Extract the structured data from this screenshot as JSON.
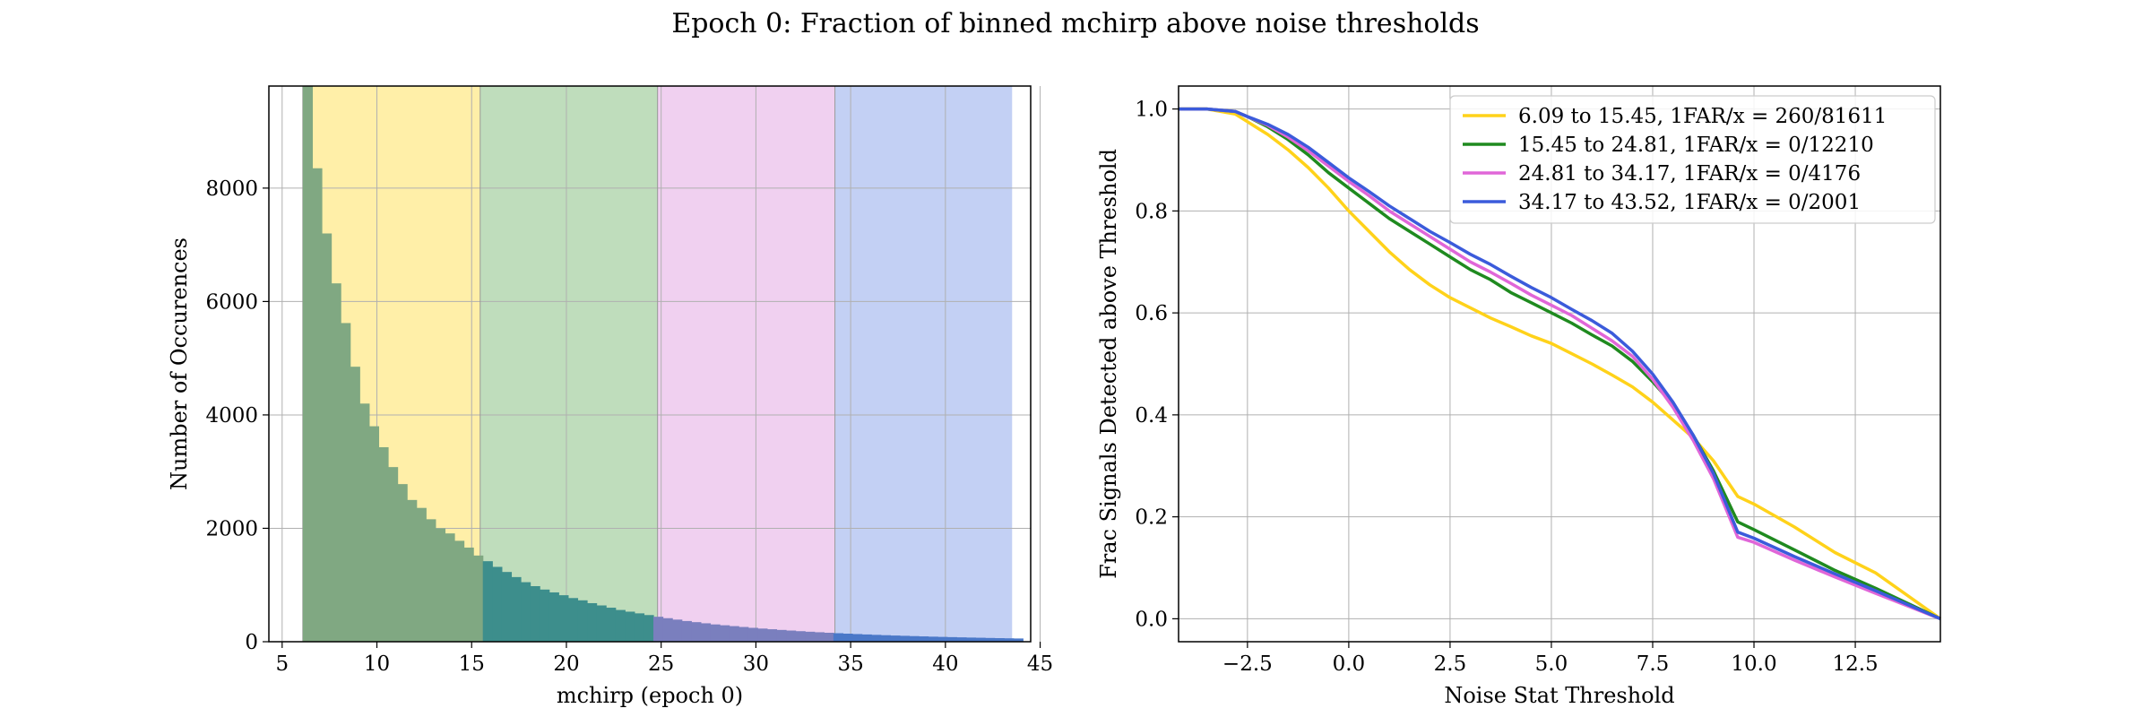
{
  "figure": {
    "suptitle": "Epoch 0: Fraction of binned mchirp above noise thresholds"
  },
  "chart_data": [
    {
      "type": "bar",
      "subtype": "histogram",
      "xlabel": "mchirp (epoch 0)",
      "ylabel": "Number of Occurences",
      "xlim": [
        4.3,
        44.5
      ],
      "ylim": [
        0,
        9800
      ],
      "xticks": [
        5,
        10,
        15,
        20,
        25,
        30,
        35,
        40,
        45
      ],
      "yticks": [
        0,
        2000,
        4000,
        6000,
        8000
      ],
      "grid": true,
      "bin_width": 0.5,
      "bin_start": 6.09,
      "bin_heights": [
        9800,
        8350,
        7200,
        6320,
        5620,
        4850,
        4200,
        3800,
        3430,
        3080,
        2780,
        2500,
        2360,
        2160,
        2000,
        1910,
        1780,
        1660,
        1520,
        1420,
        1320,
        1230,
        1140,
        1050,
        980,
        920,
        870,
        820,
        770,
        730,
        680,
        640,
        600,
        560,
        530,
        500,
        470,
        440,
        415,
        390,
        365,
        345,
        325,
        305,
        290,
        275,
        260,
        245,
        232,
        220,
        208,
        197,
        186,
        176,
        167,
        158,
        150,
        142,
        135,
        128,
        121,
        115,
        109,
        104,
        99,
        94,
        89,
        85,
        81,
        77,
        73,
        70,
        66,
        63,
        60,
        57
      ],
      "bands": [
        {
          "from": 6.09,
          "to": 15.45,
          "color": "#FFEFA8",
          "overlay": "#80A882"
        },
        {
          "from": 15.45,
          "to": 24.81,
          "color": "#BFDDBC",
          "overlay": "#3D8E8C"
        },
        {
          "from": 24.81,
          "to": 34.17,
          "color": "#F0D0F0",
          "overlay": "#7A7FBE"
        },
        {
          "from": 34.17,
          "to": 43.52,
          "color": "#C3D0F4",
          "overlay": "#4A78C8"
        }
      ]
    },
    {
      "type": "line",
      "xlabel": "Noise Stat Threshold",
      "ylabel": "Frac Signals Detected above Threshold",
      "xlim": [
        -4.2,
        14.6
      ],
      "ylim": [
        -0.045,
        1.045
      ],
      "xticks": [
        -2.5,
        0.0,
        2.5,
        5.0,
        7.5,
        10.0,
        12.5
      ],
      "xtick_labels": [
        "−2.5",
        "0.0",
        "2.5",
        "5.0",
        "7.5",
        "10.0",
        "12.5"
      ],
      "yticks": [
        0.0,
        0.2,
        0.4,
        0.6,
        0.8,
        1.0
      ],
      "ytick_labels": [
        "0.0",
        "0.2",
        "0.4",
        "0.6",
        "0.8",
        "1.0"
      ],
      "grid": true,
      "legend_position": "top-right",
      "series": [
        {
          "name": "6.09 to 15.45, 1FAR/x = 260/81611",
          "color": "#FFD21A",
          "x": [
            -4.2,
            -3.5,
            -2.8,
            -2.5,
            -2.0,
            -1.5,
            -1.0,
            -0.5,
            0.0,
            0.5,
            1.0,
            1.5,
            2.0,
            2.5,
            3.0,
            3.5,
            4.0,
            4.5,
            5.0,
            5.5,
            6.0,
            6.5,
            7.0,
            7.5,
            8.0,
            8.5,
            9.0,
            9.6,
            10.0,
            11.0,
            12.0,
            13.0,
            14.6
          ],
          "y": [
            1.0,
            1.0,
            0.99,
            0.975,
            0.95,
            0.92,
            0.885,
            0.845,
            0.8,
            0.76,
            0.72,
            0.685,
            0.655,
            0.63,
            0.61,
            0.59,
            0.573,
            0.555,
            0.54,
            0.52,
            0.5,
            0.478,
            0.455,
            0.425,
            0.39,
            0.355,
            0.31,
            0.24,
            0.225,
            0.18,
            0.13,
            0.09,
            0.0
          ]
        },
        {
          "name": "15.45 to 24.81, 1FAR/x = 0/12210",
          "color": "#1F8A1F",
          "x": [
            -4.2,
            -3.5,
            -2.8,
            -2.5,
            -2.0,
            -1.5,
            -1.0,
            -0.5,
            0.0,
            0.5,
            1.0,
            1.5,
            2.0,
            2.5,
            3.0,
            3.5,
            4.0,
            4.5,
            5.0,
            5.5,
            6.0,
            6.5,
            7.0,
            7.5,
            8.0,
            8.5,
            9.0,
            9.6,
            10.0,
            11.0,
            12.0,
            13.0,
            14.6
          ],
          "y": [
            1.0,
            1.0,
            0.995,
            0.985,
            0.965,
            0.94,
            0.91,
            0.875,
            0.845,
            0.815,
            0.785,
            0.76,
            0.735,
            0.71,
            0.685,
            0.665,
            0.64,
            0.62,
            0.6,
            0.58,
            0.557,
            0.535,
            0.505,
            0.465,
            0.42,
            0.36,
            0.29,
            0.19,
            0.175,
            0.135,
            0.095,
            0.06,
            0.0
          ]
        },
        {
          "name": "24.81 to 34.17, 1FAR/x = 0/4176",
          "color": "#E066D8",
          "x": [
            -4.2,
            -3.5,
            -2.8,
            -2.5,
            -2.0,
            -1.5,
            -1.0,
            -0.5,
            0.0,
            0.5,
            1.0,
            1.5,
            2.0,
            2.5,
            3.0,
            3.5,
            4.0,
            4.5,
            5.0,
            5.5,
            6.0,
            6.5,
            7.0,
            7.5,
            8.0,
            8.5,
            9.0,
            9.6,
            10.0,
            11.0,
            12.0,
            13.0,
            14.6
          ],
          "y": [
            1.0,
            1.0,
            0.995,
            0.985,
            0.968,
            0.945,
            0.918,
            0.888,
            0.858,
            0.83,
            0.8,
            0.775,
            0.75,
            0.725,
            0.7,
            0.68,
            0.658,
            0.635,
            0.615,
            0.595,
            0.57,
            0.545,
            0.515,
            0.47,
            0.415,
            0.35,
            0.275,
            0.16,
            0.15,
            0.115,
            0.082,
            0.05,
            0.0
          ]
        },
        {
          "name": "34.17 to 43.52, 1FAR/x = 0/2001",
          "color": "#3B5BDB",
          "x": [
            -4.2,
            -3.5,
            -2.8,
            -2.5,
            -2.0,
            -1.5,
            -1.0,
            -0.5,
            0.0,
            0.5,
            1.0,
            1.5,
            2.0,
            2.5,
            3.0,
            3.5,
            4.0,
            4.5,
            5.0,
            5.5,
            6.0,
            6.5,
            7.0,
            7.5,
            8.0,
            8.5,
            9.0,
            9.6,
            10.0,
            11.0,
            12.0,
            13.0,
            14.6
          ],
          "y": [
            1.0,
            1.0,
            0.995,
            0.985,
            0.97,
            0.95,
            0.925,
            0.895,
            0.865,
            0.838,
            0.81,
            0.785,
            0.76,
            0.738,
            0.715,
            0.695,
            0.672,
            0.65,
            0.63,
            0.607,
            0.585,
            0.56,
            0.525,
            0.48,
            0.425,
            0.36,
            0.285,
            0.17,
            0.158,
            0.122,
            0.088,
            0.055,
            0.0
          ]
        }
      ]
    }
  ]
}
